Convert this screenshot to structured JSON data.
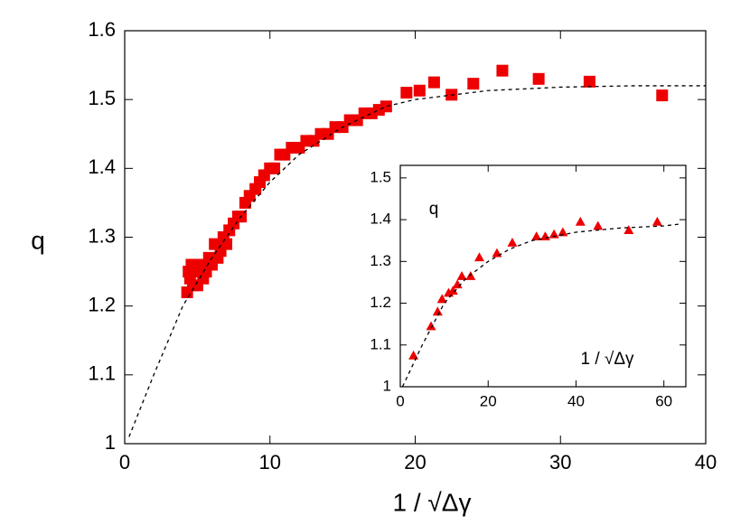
{
  "chart_data": [
    {
      "type": "scatter",
      "xlabel": "1 / √Δγ",
      "ylabel": "q",
      "xlim": [
        0,
        40
      ],
      "ylim": [
        1,
        1.6
      ],
      "xticks": [
        0,
        10,
        20,
        30,
        40
      ],
      "yticks": [
        1,
        1.1,
        1.2,
        1.3,
        1.4,
        1.5,
        1.6
      ],
      "series": [
        {
          "marker": "square",
          "color": "#ee0000",
          "x": [
            4.3,
            4.4,
            4.5,
            4.6,
            4.7,
            4.8,
            5.0,
            5.2,
            5.4,
            5.6,
            5.8,
            6.0,
            6.2,
            6.4,
            6.6,
            6.8,
            7.0,
            7.2,
            7.5,
            7.8,
            8.0,
            8.3,
            8.6,
            9.0,
            9.3,
            9.6,
            10.0,
            10.3,
            10.7,
            11.0,
            11.5,
            12.0,
            12.5,
            13.0,
            13.5,
            14.0,
            14.5,
            15.0,
            15.5,
            16.0,
            16.5,
            17.0,
            17.5,
            18.0,
            19.4,
            20.3,
            21.3,
            22.5,
            24.0,
            26.0,
            28.5,
            32.0,
            37.0
          ],
          "values": [
            1.22,
            1.25,
            1.24,
            1.26,
            1.23,
            1.25,
            1.23,
            1.26,
            1.24,
            1.25,
            1.27,
            1.26,
            1.29,
            1.27,
            1.28,
            1.3,
            1.29,
            1.31,
            1.32,
            1.33,
            1.33,
            1.35,
            1.36,
            1.37,
            1.38,
            1.39,
            1.4,
            1.4,
            1.42,
            1.42,
            1.43,
            1.43,
            1.44,
            1.44,
            1.45,
            1.45,
            1.46,
            1.46,
            1.47,
            1.47,
            1.48,
            1.48,
            1.485,
            1.49,
            1.51,
            1.513,
            1.525,
            1.507,
            1.523,
            1.542,
            1.53,
            1.526,
            1.506
          ]
        },
        {
          "marker": "dashed-line",
          "color": "#000000",
          "x": [
            0.3,
            2,
            4,
            6,
            8,
            10,
            12,
            15,
            18,
            20,
            25,
            30,
            35,
            40
          ],
          "values": [
            1.01,
            1.1,
            1.2,
            1.27,
            1.33,
            1.38,
            1.42,
            1.46,
            1.49,
            1.5,
            1.513,
            1.518,
            1.52,
            1.52
          ]
        }
      ]
    },
    {
      "type": "scatter",
      "xlabel": "1 / √Δγ",
      "ylabel": "q",
      "xlim": [
        0,
        65
      ],
      "ylim": [
        1,
        1.53
      ],
      "xticks": [
        0,
        20,
        40,
        60
      ],
      "yticks": [
        1,
        1.1,
        1.2,
        1.3,
        1.4,
        1.5
      ],
      "series": [
        {
          "marker": "triangle",
          "color": "#ee0000",
          "x": [
            3,
            7,
            8.5,
            9.5,
            11,
            12,
            13,
            14,
            16,
            18,
            22,
            25.5,
            31,
            33,
            35,
            37,
            41,
            45,
            52,
            58.5
          ],
          "values": [
            1.075,
            1.145,
            1.18,
            1.21,
            1.225,
            1.23,
            1.245,
            1.265,
            1.265,
            1.31,
            1.32,
            1.345,
            1.36,
            1.36,
            1.365,
            1.37,
            1.395,
            1.385,
            1.375,
            1.395
          ]
        },
        {
          "marker": "dashed-line",
          "color": "#000000",
          "x": [
            0.5,
            5,
            10,
            15,
            20,
            25,
            30,
            40,
            50,
            60,
            64
          ],
          "values": [
            1.0,
            1.1,
            1.2,
            1.26,
            1.3,
            1.33,
            1.35,
            1.37,
            1.38,
            1.385,
            1.39
          ]
        }
      ]
    }
  ]
}
